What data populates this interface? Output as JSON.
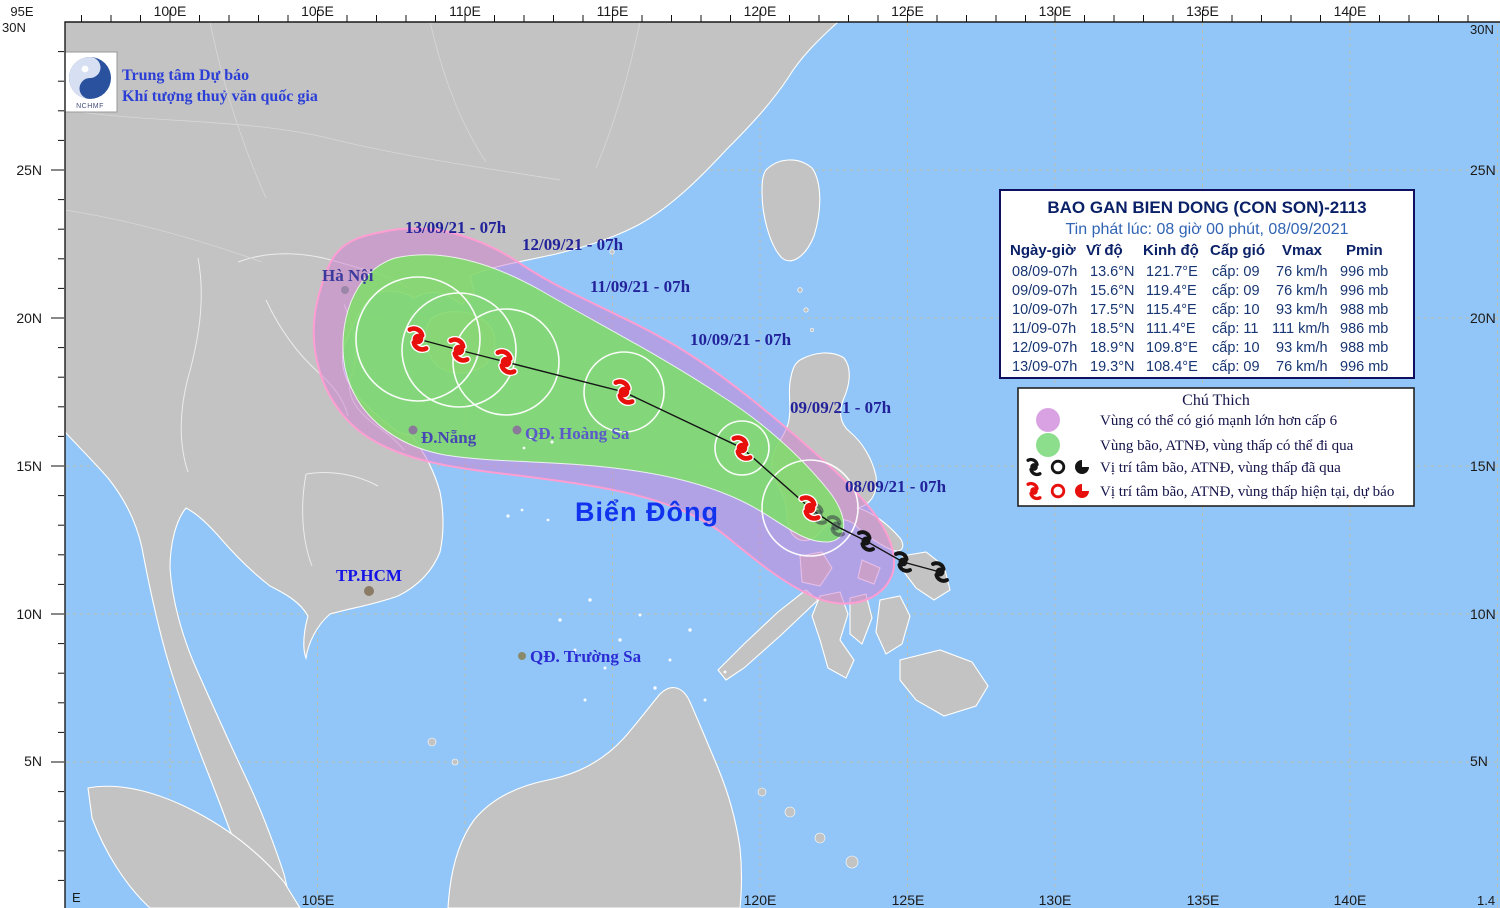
{
  "branding": {
    "line1": "Trung tâm Dự báo",
    "line2": "Khí tượng thuỷ văn quốc gia",
    "logo": "NCHMF"
  },
  "info_box": {
    "title": "BAO GAN BIEN DONG (CON SON)-2113",
    "issued": "Tin phát lúc: 08 giờ 00 phút, 08/09/2021",
    "columns": [
      "Ngày-giờ",
      "Vĩ độ",
      "Kinh độ",
      "Cấp gió",
      "Vmax",
      "Pmin"
    ],
    "rows": [
      {
        "time": "08/09-07h",
        "lat": "13.6°N",
        "lon": "121.7°E",
        "wind": "cấp: 09",
        "vmax": "76 km/h",
        "pmin": "996 mb"
      },
      {
        "time": "09/09-07h",
        "lat": "15.6°N",
        "lon": "119.4°E",
        "wind": "cấp: 09",
        "vmax": "76 km/h",
        "pmin": "996 mb"
      },
      {
        "time": "10/09-07h",
        "lat": "17.5°N",
        "lon": "115.4°E",
        "wind": "cấp: 10",
        "vmax": "93 km/h",
        "pmin": "988 mb"
      },
      {
        "time": "11/09-07h",
        "lat": "18.5°N",
        "lon": "111.4°E",
        "wind": "cấp: 11",
        "vmax": "111 km/h",
        "pmin": "986 mb"
      },
      {
        "time": "12/09-07h",
        "lat": "18.9°N",
        "lon": "109.8°E",
        "wind": "cấp: 10",
        "vmax": "93 km/h",
        "pmin": "988 mb"
      },
      {
        "time": "13/09-07h",
        "lat": "19.3°N",
        "lon": "108.4°E",
        "wind": "cấp: 09",
        "vmax": "76 km/h",
        "pmin": "996 mb"
      }
    ]
  },
  "legend": {
    "title": "Chú Thich",
    "items": [
      {
        "label": "Vùng có thể có gió mạnh lớn hơn cấp 6",
        "swatch": "#D9A3E3"
      },
      {
        "label": "Vùng bão, ATNĐ, vùng thấp có thể đi qua",
        "swatch": "#8CDE8C"
      },
      {
        "label": "Vị trí tâm bão, ATNĐ, vùng thấp đã qua",
        "color": "#151515"
      },
      {
        "label": "Vị trí tâm bão, ATNĐ, vùng thấp hiện tại, dự báo",
        "color": "#E8100C"
      }
    ]
  },
  "sea_label": "Biển Đông",
  "cities": {
    "hanoi": "Hà Nội",
    "danang": "Đ.Nẵng",
    "hoangsa": "QĐ. Hoàng Sa",
    "hcm": "TP.HCM",
    "truongsa": "QĐ. Trường Sa"
  },
  "track_dates": {
    "d13": "13/09/21 - 07h",
    "d12": "12/09/21 - 07h",
    "d11": "11/09/21 - 07h",
    "d10": "10/09/21 - 07h",
    "d09": "09/09/21 - 07h",
    "d08": "08/09/21 - 07h"
  },
  "axes": {
    "top": [
      "100E",
      "105E",
      "110E",
      "115E",
      "120E",
      "125E",
      "130E",
      "135E",
      "140E"
    ],
    "left": [
      "25N",
      "20N",
      "15N",
      "10N",
      "5N"
    ],
    "right": [
      "25N",
      "20N",
      "15N",
      "10N",
      "5N"
    ],
    "bottom": [
      "105E",
      "120E",
      "125E",
      "130E",
      "135E",
      "140E"
    ],
    "fragments": {
      "top_left_lat": "30N",
      "top_left_lon": "95E",
      "top_right_lat": "30N",
      "bottom_left_lon": "E",
      "bottom_right": "1.4"
    }
  },
  "colors": {
    "sea": "#92C6F8",
    "land": "#C3C3C3",
    "grid": "#BDBDA8",
    "wind_area_fill": "rgba(205,125,210,0.50)",
    "wind_area_border": "#FF9ED2",
    "track_area_fill": "rgba(120,228,95,0.80)",
    "past_color": "#151515",
    "forecast_color": "#E8100C"
  }
}
